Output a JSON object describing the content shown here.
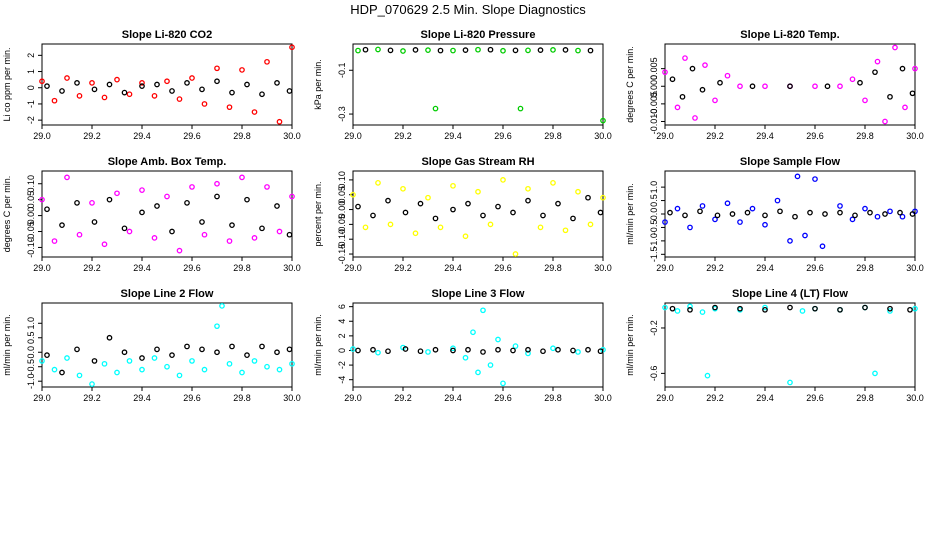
{
  "title": "HDP_070629  2.5 Min. Slope Diagnostics",
  "x_ticks": [
    29.0,
    29.2,
    29.4,
    29.6,
    29.8,
    30.0
  ],
  "x_tick_labels": [
    "29.0",
    "29.2",
    "29.4",
    "29.6",
    "29.8",
    "30.0"
  ],
  "highlight_color": "#000000",
  "chart_data": [
    {
      "type": "scatter",
      "title": "Slope Li-820 CO2",
      "ylabel": "Li co ppm per min.",
      "color": "#ff0000",
      "xlim": [
        29.0,
        30.0
      ],
      "ylim": [
        -2.3,
        2.7
      ],
      "y_ticks": [
        -2,
        -1,
        0,
        1,
        2
      ],
      "y_tick_labels": [
        "-2",
        "-1",
        "0",
        "1",
        "2"
      ],
      "series": [
        {
          "x": [
            29.0,
            29.05,
            29.1,
            29.15,
            29.2,
            29.25,
            29.3,
            29.35,
            29.4,
            29.45,
            29.5,
            29.55,
            29.6,
            29.65,
            29.7,
            29.75,
            29.8,
            29.85,
            29.9,
            29.95,
            30.0
          ],
          "y": [
            0.4,
            -0.8,
            0.6,
            -0.5,
            0.3,
            -0.6,
            0.5,
            -0.4,
            0.3,
            -0.5,
            0.4,
            -0.7,
            0.6,
            -1.0,
            1.2,
            -1.2,
            1.1,
            -1.5,
            1.6,
            -2.1,
            2.5
          ]
        },
        {
          "x": [
            29.02,
            29.08,
            29.14,
            29.21,
            29.27,
            29.33,
            29.4,
            29.46,
            29.52,
            29.58,
            29.64,
            29.7,
            29.76,
            29.82,
            29.88,
            29.94,
            29.99
          ],
          "y": [
            0.1,
            -0.2,
            0.3,
            -0.1,
            0.2,
            -0.3,
            0.1,
            0.2,
            -0.2,
            0.3,
            -0.1,
            0.4,
            -0.3,
            0.2,
            -0.4,
            0.3,
            -0.2
          ]
        }
      ]
    },
    {
      "type": "scatter",
      "title": "Slope Li-820 Pressure",
      "ylabel": "kPa per min.",
      "color": "#00cc00",
      "xlim": [
        29.0,
        30.0
      ],
      "ylim": [
        -0.35,
        0.02
      ],
      "y_ticks": [
        -0.3,
        -0.1
      ],
      "y_tick_labels": [
        "-0.3",
        "-0.1"
      ],
      "series": [
        {
          "x": [
            29.02,
            29.1,
            29.2,
            29.3,
            29.33,
            29.4,
            29.5,
            29.6,
            29.67,
            29.7,
            29.8,
            29.9,
            30.0
          ],
          "y": [
            -0.01,
            -0.005,
            -0.012,
            -0.008,
            -0.275,
            -0.01,
            -0.006,
            -0.011,
            -0.275,
            -0.009,
            -0.007,
            -0.01,
            -0.33
          ]
        },
        {
          "x": [
            29.05,
            29.15,
            29.25,
            29.35,
            29.45,
            29.55,
            29.65,
            29.75,
            29.85,
            29.95
          ],
          "y": [
            -0.006,
            -0.009,
            -0.007,
            -0.01,
            -0.008,
            -0.006,
            -0.009,
            -0.008,
            -0.007,
            -0.01
          ]
        }
      ]
    },
    {
      "type": "scatter",
      "title": "Slope Li-820 Temp.",
      "ylabel": "degrees C per min.",
      "color": "#ff00ff",
      "xlim": [
        29.0,
        30.0
      ],
      "ylim": [
        -0.011,
        0.012
      ],
      "y_ticks": [
        -0.01,
        -0.005,
        0.0,
        0.005
      ],
      "y_tick_labels": [
        "-0.010",
        "-0.005",
        "0.000",
        "0.005"
      ],
      "series": [
        {
          "x": [
            29.0,
            29.05,
            29.08,
            29.12,
            29.16,
            29.2,
            29.25,
            29.3,
            29.4,
            29.5,
            29.6,
            29.7,
            29.75,
            29.8,
            29.85,
            29.88,
            29.92,
            29.96,
            30.0
          ],
          "y": [
            0.004,
            -0.006,
            0.008,
            -0.009,
            0.006,
            -0.004,
            0.003,
            0.0,
            0.0,
            0.0,
            0.0,
            0.0,
            0.002,
            -0.004,
            0.007,
            -0.01,
            0.011,
            -0.006,
            0.005
          ]
        },
        {
          "x": [
            29.03,
            29.07,
            29.11,
            29.15,
            29.22,
            29.35,
            29.5,
            29.65,
            29.78,
            29.84,
            29.9,
            29.95,
            29.99
          ],
          "y": [
            0.002,
            -0.003,
            0.005,
            -0.001,
            0.001,
            0.0,
            0.0,
            0.0,
            0.001,
            0.004,
            -0.003,
            0.005,
            -0.002
          ]
        }
      ]
    },
    {
      "type": "scatter",
      "title": "Slope Amb. Box Temp.",
      "ylabel": "degrees C per min.",
      "color": "#ff00ff",
      "xlim": [
        29.0,
        30.0
      ],
      "ylim": [
        -0.13,
        0.14
      ],
      "y_ticks": [
        -0.1,
        -0.05,
        0.0,
        0.05,
        0.1
      ],
      "y_tick_labels": [
        "-0.10",
        "-0.05",
        "0.00",
        "0.05",
        "0.10"
      ],
      "series": [
        {
          "x": [
            29.0,
            29.05,
            29.1,
            29.15,
            29.2,
            29.25,
            29.3,
            29.35,
            29.4,
            29.45,
            29.5,
            29.55,
            29.6,
            29.65,
            29.7,
            29.75,
            29.8,
            29.85,
            29.9,
            29.95,
            30.0
          ],
          "y": [
            0.05,
            -0.08,
            0.12,
            -0.06,
            0.04,
            -0.09,
            0.07,
            -0.05,
            0.08,
            -0.07,
            0.06,
            -0.11,
            0.09,
            -0.06,
            0.1,
            -0.08,
            0.12,
            -0.07,
            0.09,
            -0.05,
            0.06
          ]
        },
        {
          "x": [
            29.02,
            29.08,
            29.14,
            29.21,
            29.27,
            29.33,
            29.4,
            29.46,
            29.52,
            29.58,
            29.64,
            29.7,
            29.76,
            29.82,
            29.88,
            29.94,
            29.99
          ],
          "y": [
            0.02,
            -0.03,
            0.04,
            -0.02,
            0.05,
            -0.04,
            0.01,
            0.03,
            -0.05,
            0.04,
            -0.02,
            0.06,
            -0.03,
            0.05,
            -0.04,
            0.03,
            -0.06
          ]
        }
      ]
    },
    {
      "type": "scatter",
      "title": "Slope Gas Stream RH",
      "ylabel": "percent per min.",
      "color": "#ffff00",
      "xlim": [
        29.0,
        30.0
      ],
      "ylim": [
        -0.16,
        0.13
      ],
      "y_ticks": [
        -0.15,
        -0.1,
        -0.05,
        0.0,
        0.05,
        0.1
      ],
      "y_tick_labels": [
        "-0.15",
        "-0.10",
        "-0.05",
        "0.00",
        "0.05",
        "0.10"
      ],
      "series": [
        {
          "x": [
            29.0,
            29.05,
            29.1,
            29.15,
            29.2,
            29.25,
            29.3,
            29.35,
            29.4,
            29.45,
            29.5,
            29.55,
            29.6,
            29.65,
            29.7,
            29.75,
            29.8,
            29.85,
            29.9,
            29.95,
            30.0
          ],
          "y": [
            0.05,
            -0.06,
            0.09,
            -0.05,
            0.07,
            -0.08,
            0.04,
            -0.06,
            0.08,
            -0.09,
            0.06,
            -0.05,
            0.1,
            -0.15,
            0.07,
            -0.06,
            0.09,
            -0.07,
            0.06,
            -0.05,
            0.04
          ]
        },
        {
          "x": [
            29.02,
            29.08,
            29.14,
            29.21,
            29.27,
            29.33,
            29.4,
            29.46,
            29.52,
            29.58,
            29.64,
            29.7,
            29.76,
            29.82,
            29.88,
            29.94,
            29.99
          ],
          "y": [
            0.01,
            -0.02,
            0.03,
            -0.01,
            0.02,
            -0.03,
            0.0,
            0.02,
            -0.02,
            0.01,
            -0.01,
            0.03,
            -0.02,
            0.02,
            -0.03,
            0.04,
            -0.01
          ]
        }
      ]
    },
    {
      "type": "scatter",
      "title": "Slope Sample Flow",
      "ylabel": "ml/min per min.",
      "color": "#0000ff",
      "xlim": [
        29.0,
        30.0
      ],
      "ylim": [
        -1.6,
        1.6
      ],
      "y_ticks": [
        -1.5,
        -1.0,
        -0.5,
        0.0,
        0.5,
        1.0
      ],
      "y_tick_labels": [
        "-1.5",
        "-1.0",
        "-0.5",
        "0.0",
        "0.5",
        "1.0"
      ],
      "series": [
        {
          "x": [
            29.0,
            29.05,
            29.1,
            29.15,
            29.2,
            29.25,
            29.3,
            29.35,
            29.4,
            29.45,
            29.5,
            29.53,
            29.56,
            29.6,
            29.63,
            29.7,
            29.75,
            29.8,
            29.85,
            29.9,
            29.95,
            30.0
          ],
          "y": [
            -0.3,
            0.2,
            -0.5,
            0.3,
            -0.2,
            0.4,
            -0.3,
            0.2,
            -0.4,
            0.5,
            -1.0,
            1.4,
            -0.8,
            1.3,
            -1.2,
            0.3,
            -0.2,
            0.2,
            -0.1,
            0.1,
            -0.1,
            0.1
          ]
        },
        {
          "x": [
            29.02,
            29.08,
            29.14,
            29.21,
            29.27,
            29.33,
            29.4,
            29.46,
            29.52,
            29.58,
            29.64,
            29.7,
            29.76,
            29.82,
            29.88,
            29.94,
            29.99
          ],
          "y": [
            0.05,
            -0.05,
            0.1,
            -0.05,
            0.0,
            0.05,
            -0.05,
            0.1,
            -0.1,
            0.05,
            0.0,
            0.05,
            -0.05,
            0.05,
            0.0,
            0.05,
            0.0
          ]
        }
      ]
    },
    {
      "type": "scatter",
      "title": "Slope Line 2 Flow",
      "ylabel": "ml/min per min.",
      "color": "#00ffff",
      "xlim": [
        29.0,
        30.0
      ],
      "ylim": [
        -1.2,
        1.7
      ],
      "y_ticks": [
        -1.0,
        -0.5,
        0.0,
        0.5,
        1.0
      ],
      "y_tick_labels": [
        "-1.0",
        "-0.5",
        "0.0",
        "0.5",
        "1.0"
      ],
      "series": [
        {
          "x": [
            29.0,
            29.05,
            29.1,
            29.15,
            29.2,
            29.25,
            29.3,
            29.35,
            29.4,
            29.45,
            29.5,
            29.55,
            29.6,
            29.65,
            29.7,
            29.72,
            29.75,
            29.8,
            29.85,
            29.9,
            29.95,
            30.0
          ],
          "y": [
            -0.3,
            -0.6,
            -0.2,
            -0.8,
            -1.1,
            -0.4,
            -0.7,
            -0.3,
            -0.6,
            -0.2,
            -0.5,
            -0.8,
            -0.3,
            -0.6,
            0.9,
            1.6,
            -0.4,
            -0.7,
            -0.3,
            -0.5,
            -0.6,
            -0.4
          ]
        },
        {
          "x": [
            29.02,
            29.08,
            29.14,
            29.21,
            29.27,
            29.33,
            29.4,
            29.46,
            29.52,
            29.58,
            29.64,
            29.7,
            29.76,
            29.82,
            29.88,
            29.94,
            29.99
          ],
          "y": [
            -0.1,
            -0.7,
            0.1,
            -0.3,
            0.5,
            0.0,
            -0.2,
            0.1,
            -0.1,
            0.2,
            0.1,
            0.0,
            0.2,
            -0.1,
            0.2,
            0.0,
            0.1
          ]
        }
      ]
    },
    {
      "type": "scatter",
      "title": "Slope Line 3 Flow",
      "ylabel": "ml/min per min.",
      "color": "#00ffff",
      "xlim": [
        29.0,
        30.0
      ],
      "ylim": [
        -5.0,
        6.5
      ],
      "y_ticks": [
        -4,
        -2,
        0,
        2,
        4,
        6
      ],
      "y_tick_labels": [
        "-4",
        "-2",
        "0",
        "2",
        "4",
        "6"
      ],
      "series": [
        {
          "x": [
            29.0,
            29.1,
            29.2,
            29.3,
            29.4,
            29.45,
            29.48,
            29.5,
            29.52,
            29.55,
            29.58,
            29.6,
            29.65,
            29.7,
            29.8,
            29.9,
            30.0
          ],
          "y": [
            0.2,
            -0.3,
            0.4,
            -0.2,
            0.3,
            -1.0,
            2.5,
            -3.0,
            5.5,
            -2.0,
            1.5,
            -4.5,
            0.6,
            -0.4,
            0.3,
            -0.2,
            0.1
          ]
        },
        {
          "x": [
            29.02,
            29.08,
            29.14,
            29.21,
            29.27,
            29.33,
            29.4,
            29.46,
            29.52,
            29.58,
            29.64,
            29.7,
            29.76,
            29.82,
            29.88,
            29.94,
            29.99
          ],
          "y": [
            0.0,
            0.1,
            -0.1,
            0.2,
            -0.1,
            0.1,
            0.0,
            0.1,
            -0.2,
            0.1,
            0.0,
            0.1,
            -0.1,
            0.1,
            0.0,
            0.1,
            -0.1
          ]
        }
      ]
    },
    {
      "type": "scatter",
      "title": "Slope Line 4 (LT) Flow",
      "ylabel": "ml/min per min.",
      "color": "#00ffff",
      "xlim": [
        29.0,
        30.0
      ],
      "ylim": [
        -0.72,
        0.02
      ],
      "y_ticks": [
        -0.6,
        -0.2
      ],
      "y_tick_labels": [
        "-0.6",
        "-0.2"
      ],
      "series": [
        {
          "x": [
            29.0,
            29.05,
            29.1,
            29.15,
            29.17,
            29.2,
            29.3,
            29.4,
            29.5,
            29.55,
            29.6,
            29.7,
            29.8,
            29.84,
            29.9,
            30.0
          ],
          "y": [
            -0.02,
            -0.05,
            -0.01,
            -0.06,
            -0.62,
            -0.03,
            -0.04,
            -0.02,
            -0.68,
            -0.05,
            -0.03,
            -0.04,
            -0.02,
            -0.6,
            -0.05,
            -0.03
          ]
        },
        {
          "x": [
            29.03,
            29.1,
            29.2,
            29.3,
            29.4,
            29.5,
            29.6,
            29.7,
            29.8,
            29.9,
            29.98
          ],
          "y": [
            -0.03,
            -0.04,
            -0.02,
            -0.03,
            -0.04,
            -0.02,
            -0.03,
            -0.04,
            -0.02,
            -0.03,
            -0.04
          ]
        }
      ]
    }
  ]
}
